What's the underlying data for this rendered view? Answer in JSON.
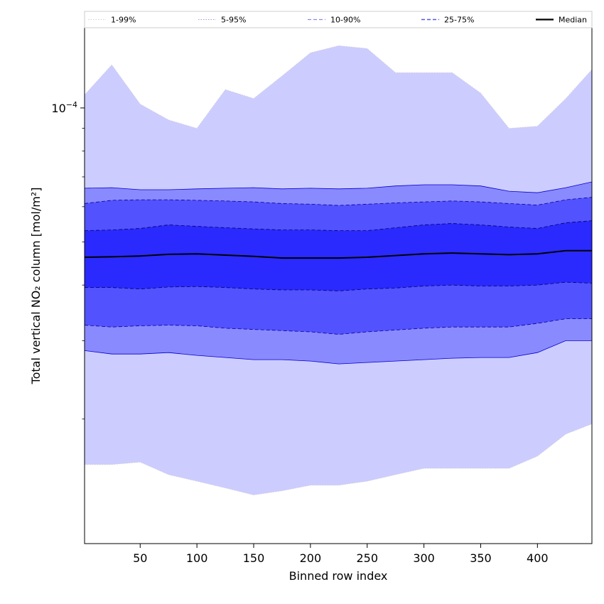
{
  "chart_data": {
    "type": "area",
    "xlabel": "Binned row index",
    "ylabel": "Total vertical NO₂ column [mol/m²]",
    "xscale": "linear",
    "yscale": "log",
    "xlim": [
      1,
      448
    ],
    "ylim": [
      1.05e-05,
      0.000152
    ],
    "grid": false,
    "legend_position": "top (above plot, one row)",
    "x_ticks": [
      {
        "value": 50,
        "label": "50"
      },
      {
        "value": 100,
        "label": "100"
      },
      {
        "value": 150,
        "label": "150"
      },
      {
        "value": 200,
        "label": "200"
      },
      {
        "value": 250,
        "label": "250"
      },
      {
        "value": 300,
        "label": "300"
      },
      {
        "value": 350,
        "label": "350"
      },
      {
        "value": 400,
        "label": "400"
      }
    ],
    "y_major_ticks": [
      {
        "value": 0.0001,
        "label_base": "10",
        "label_exp": "−4"
      }
    ],
    "y_minor_ticks": [
      2e-05,
      3e-05,
      4e-05,
      5e-05,
      6e-05,
      7e-05,
      8e-05,
      9e-05
    ],
    "x": [
      1,
      25,
      50,
      75,
      100,
      125,
      150,
      175,
      200,
      225,
      250,
      275,
      300,
      325,
      350,
      375,
      400,
      425,
      448
    ],
    "bands": [
      {
        "name": "1-99%",
        "fill": "#ccccff",
        "line_color": "#d0d0d0",
        "line_style": "dotted",
        "lower": [
          1.58e-05,
          1.58e-05,
          1.6e-05,
          1.5e-05,
          1.45e-05,
          1.4e-05,
          1.35e-05,
          1.38e-05,
          1.42e-05,
          1.42e-05,
          1.45e-05,
          1.5e-05,
          1.55e-05,
          1.55e-05,
          1.55e-05,
          1.55e-05,
          1.65e-05,
          1.85e-05,
          1.95e-05
        ],
        "upper": [
          0.000107,
          0.000125,
          0.000102,
          9.4e-05,
          9e-05,
          0.00011,
          0.000105,
          0.000118,
          0.000133,
          0.000138,
          0.000136,
          0.00012,
          0.00012,
          0.00012,
          0.000108,
          9e-05,
          9.1e-05,
          0.000105,
          0.000122
        ]
      },
      {
        "name": "5-95%",
        "fill": "#8a8aff",
        "line_color": "#0000cc",
        "line_style": "solid",
        "lower": [
          2.85e-05,
          2.8e-05,
          2.8e-05,
          2.82e-05,
          2.78e-05,
          2.75e-05,
          2.72e-05,
          2.72e-05,
          2.7e-05,
          2.66e-05,
          2.68e-05,
          2.7e-05,
          2.72e-05,
          2.74e-05,
          2.75e-05,
          2.75e-05,
          2.82e-05,
          3e-05,
          3e-05
        ],
        "upper": [
          6.6e-05,
          6.62e-05,
          6.55e-05,
          6.55e-05,
          6.58e-05,
          6.6e-05,
          6.62e-05,
          6.58e-05,
          6.6e-05,
          6.58e-05,
          6.6e-05,
          6.68e-05,
          6.72e-05,
          6.72e-05,
          6.68e-05,
          6.5e-05,
          6.45e-05,
          6.62e-05,
          6.82e-05
        ]
      },
      {
        "name": "10-90%",
        "fill": "#5252ff",
        "line_color": "#000099",
        "line_style": "dashed",
        "lower": [
          3.25e-05,
          3.22e-05,
          3.24e-05,
          3.25e-05,
          3.24e-05,
          3.2e-05,
          3.18e-05,
          3.16e-05,
          3.14e-05,
          3.1e-05,
          3.14e-05,
          3.17e-05,
          3.2e-05,
          3.22e-05,
          3.22e-05,
          3.22e-05,
          3.28e-05,
          3.36e-05,
          3.36e-05
        ],
        "upper": [
          6.1e-05,
          6.2e-05,
          6.22e-05,
          6.22e-05,
          6.2e-05,
          6.18e-05,
          6.15e-05,
          6.1e-05,
          6.08e-05,
          6.04e-05,
          6.08e-05,
          6.12e-05,
          6.15e-05,
          6.18e-05,
          6.15e-05,
          6.1e-05,
          6.05e-05,
          6.22e-05,
          6.3e-05
        ]
      },
      {
        "name": "25-75%",
        "fill": "#2a2aff",
        "line_color": "#000066",
        "line_style": "dashed",
        "lower": [
          3.95e-05,
          3.95e-05,
          3.92e-05,
          3.96e-05,
          3.97e-05,
          3.95e-05,
          3.92e-05,
          3.9e-05,
          3.9e-05,
          3.88e-05,
          3.92e-05,
          3.94e-05,
          3.98e-05,
          4e-05,
          3.98e-05,
          3.98e-05,
          4e-05,
          4.06e-05,
          4.04e-05
        ],
        "upper": [
          5.3e-05,
          5.32e-05,
          5.36e-05,
          5.46e-05,
          5.42e-05,
          5.38e-05,
          5.35e-05,
          5.32e-05,
          5.32e-05,
          5.3e-05,
          5.3e-05,
          5.38e-05,
          5.46e-05,
          5.5e-05,
          5.46e-05,
          5.4e-05,
          5.36e-05,
          5.52e-05,
          5.58e-05
        ]
      }
    ],
    "series": [
      {
        "name": "Median",
        "color": "#000000",
        "line_style": "solid",
        "values": [
          4.62e-05,
          4.63e-05,
          4.65e-05,
          4.69e-05,
          4.7e-05,
          4.67e-05,
          4.64e-05,
          4.6e-05,
          4.6e-05,
          4.6e-05,
          4.62e-05,
          4.66e-05,
          4.7e-05,
          4.72e-05,
          4.7e-05,
          4.68e-05,
          4.7e-05,
          4.78e-05,
          4.78e-05
        ]
      }
    ],
    "legend": [
      {
        "label": "1-99%",
        "color": "#cfcfcf",
        "style": "dotted",
        "width": 1
      },
      {
        "label": "5-95%",
        "color": "#9a9adf",
        "style": "dotted",
        "width": 1
      },
      {
        "label": "10-90%",
        "color": "#8888ee",
        "style": "dashed",
        "width": 1.2
      },
      {
        "label": "25-75%",
        "color": "#5555e8",
        "style": "dashed",
        "width": 1.4
      },
      {
        "label": "Median",
        "color": "#000000",
        "style": "solid",
        "width": 2.2
      }
    ]
  }
}
